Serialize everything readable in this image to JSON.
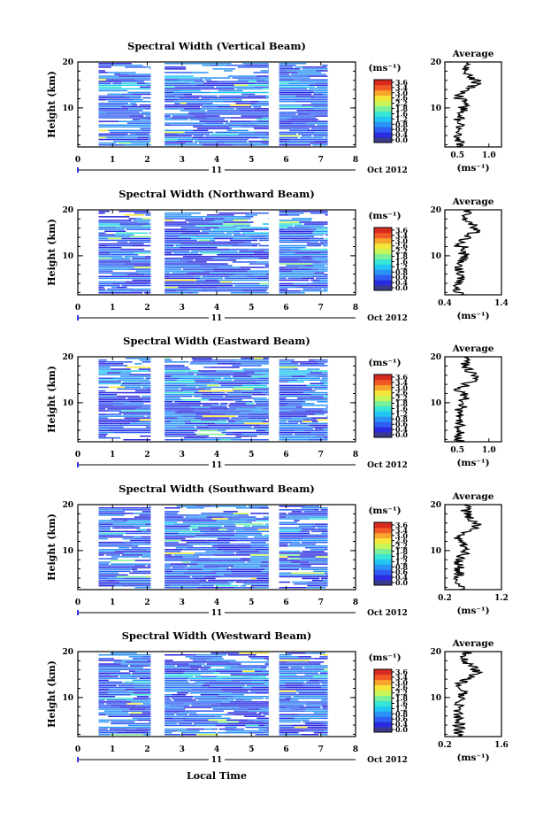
{
  "figure": {
    "xlabel_bottom": "Local Time",
    "date_label": "Oct 2012",
    "day_label": "11"
  },
  "colors": {
    "scale": [
      "#3b3b8c",
      "#2a2ae0",
      "#2f5ff2",
      "#2b93f5",
      "#22c6f2",
      "#37e6d3",
      "#7cf098",
      "#c8f55a",
      "#f5e63a",
      "#f7a52d",
      "#f25a25",
      "#d82a1f"
    ]
  },
  "chart_data": [
    {
      "type": "heatmap",
      "title": "Spectral Width (Vertical Beam)",
      "ylabel": "Height (km)",
      "x_ticks": [
        "0",
        "1",
        "2",
        "3",
        "4",
        "5",
        "6",
        "7",
        "8"
      ],
      "y_ticks": [
        "10",
        "20"
      ],
      "xlim": [
        0,
        8
      ],
      "ylim": [
        1.5,
        20
      ],
      "data_gaps": [
        [
          0,
          0.6
        ],
        [
          2.1,
          2.5
        ],
        [
          5.5,
          5.8
        ],
        [
          7.2,
          8
        ]
      ],
      "colorbar": {
        "unit": "(ms⁻¹)",
        "ticks": [
          "3.6",
          "3.4",
          "3.0",
          "2.6",
          "2.2",
          "1.8",
          "1.6",
          "1.2",
          "0.8",
          "0.6",
          "0.4",
          "0.0"
        ]
      },
      "average_panel": {
        "title": "Average",
        "xlabel": "(ms⁻¹)",
        "x_ticks": [
          "0.5",
          "1.0"
        ],
        "y_ticks": [
          "10",
          "20"
        ],
        "xlim": [
          0.3,
          1.2
        ]
      }
    },
    {
      "type": "heatmap",
      "title": "Spectral Width (Northward Beam)",
      "ylabel": "Height (km)",
      "x_ticks": [
        "0",
        "1",
        "2",
        "3",
        "4",
        "5",
        "6",
        "7",
        "8"
      ],
      "y_ticks": [
        "10",
        "20"
      ],
      "xlim": [
        0,
        8
      ],
      "ylim": [
        1.5,
        20
      ],
      "data_gaps": [
        [
          0,
          0.6
        ],
        [
          2.1,
          2.5
        ],
        [
          5.5,
          5.8
        ],
        [
          7.2,
          8
        ]
      ],
      "colorbar": {
        "unit": "(ms⁻¹)",
        "ticks": [
          "3.6",
          "3.4",
          "3.0",
          "2.6",
          "2.2",
          "1.8",
          "1.6",
          "1.2",
          "0.8",
          "0.6",
          "0.4",
          "0.0"
        ]
      },
      "average_panel": {
        "title": "Average",
        "xlabel": "(ms⁻¹)",
        "x_ticks": [
          "0.4",
          "1.4"
        ],
        "y_ticks": [
          "10",
          "20"
        ],
        "xlim": [
          0.4,
          1.4
        ]
      }
    },
    {
      "type": "heatmap",
      "title": "Spectral Width (Eastward Beam)",
      "ylabel": "Height (km)",
      "x_ticks": [
        "0",
        "1",
        "2",
        "3",
        "4",
        "5",
        "6",
        "7",
        "8"
      ],
      "y_ticks": [
        "10",
        "20"
      ],
      "xlim": [
        0,
        8
      ],
      "ylim": [
        1.5,
        20
      ],
      "data_gaps": [
        [
          0,
          0.6
        ],
        [
          2.1,
          2.5
        ],
        [
          5.5,
          5.8
        ],
        [
          7.2,
          8
        ]
      ],
      "colorbar": {
        "unit": "(ms⁻¹)",
        "ticks": [
          "3.6",
          "3.4",
          "3.0",
          "2.6",
          "2.2",
          "1.8",
          "1.6",
          "1.2",
          "0.8",
          "0.6",
          "0.4",
          "0.0"
        ]
      },
      "average_panel": {
        "title": "Average",
        "xlabel": "(ms⁻¹)",
        "x_ticks": [
          "0.5",
          "1.0"
        ],
        "y_ticks": [
          "10",
          "20"
        ],
        "xlim": [
          0.3,
          1.2
        ]
      }
    },
    {
      "type": "heatmap",
      "title": "Spectral Width (Southward Beam)",
      "ylabel": "Height (km)",
      "x_ticks": [
        "0",
        "1",
        "2",
        "3",
        "4",
        "5",
        "6",
        "7",
        "8"
      ],
      "y_ticks": [
        "10",
        "20"
      ],
      "xlim": [
        0,
        8
      ],
      "ylim": [
        1.5,
        20
      ],
      "data_gaps": [
        [
          0,
          0.6
        ],
        [
          2.1,
          2.5
        ],
        [
          5.5,
          5.8
        ],
        [
          7.2,
          8
        ]
      ],
      "colorbar": {
        "unit": "(ms⁻¹)",
        "ticks": [
          "3.6",
          "3.4",
          "3.0",
          "2.6",
          "2.2",
          "1.8",
          "1.6",
          "1.2",
          "0.8",
          "0.6",
          "0.4",
          "0.0"
        ]
      },
      "average_panel": {
        "title": "Average",
        "xlabel": "(ms⁻¹)",
        "x_ticks": [
          "0.2",
          "1.2"
        ],
        "y_ticks": [
          "10",
          "20"
        ],
        "xlim": [
          0.2,
          1.2
        ]
      }
    },
    {
      "type": "heatmap",
      "title": "Spectral Width (Westward Beam)",
      "ylabel": "Height (km)",
      "x_ticks": [
        "0",
        "1",
        "2",
        "3",
        "4",
        "5",
        "6",
        "7",
        "8"
      ],
      "y_ticks": [
        "10",
        "20"
      ],
      "xlim": [
        0,
        8
      ],
      "ylim": [
        1.5,
        20
      ],
      "data_gaps": [
        [
          0,
          0.6
        ],
        [
          2.1,
          2.5
        ],
        [
          5.5,
          5.8
        ],
        [
          7.2,
          8
        ]
      ],
      "colorbar": {
        "unit": "(ms⁻¹)",
        "ticks": [
          "3.6",
          "3.4",
          "3.0",
          "2.6",
          "2.2",
          "1.8",
          "1.6",
          "1.2",
          "0.8",
          "0.6",
          "0.4",
          "0.0"
        ]
      },
      "average_panel": {
        "title": "Average",
        "xlabel": "(ms⁻¹)",
        "x_ticks": [
          "0.2",
          "1.6"
        ],
        "y_ticks": [
          "10",
          "20"
        ],
        "xlim": [
          0.2,
          1.6
        ]
      }
    }
  ]
}
